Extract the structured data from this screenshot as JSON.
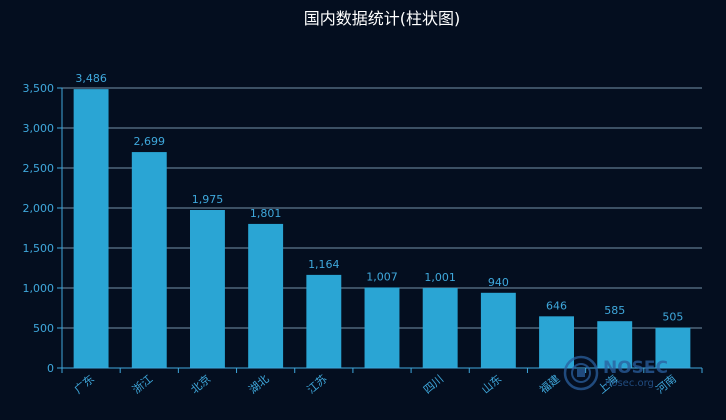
{
  "chart_data": {
    "type": "bar",
    "title": "国内数据统计(柱状图)",
    "categories": [
      "广东",
      "浙江",
      "北京",
      "湖北",
      "江苏",
      "",
      "四川",
      "山东",
      "福建",
      "上海",
      "河南"
    ],
    "values": [
      3486,
      2699,
      1975,
      1801,
      1164,
      1007,
      1001,
      940,
      646,
      585,
      505
    ],
    "data_labels": [
      "3,486",
      "2,699",
      "1,975",
      "1,801",
      "1,164",
      "1,007",
      "1,001",
      "940",
      "646",
      "585",
      "505"
    ],
    "yticks": [
      0,
      500,
      1000,
      1500,
      2000,
      2500,
      3000,
      3500
    ],
    "ytick_labels": [
      "0",
      "500",
      "1,000",
      "1,500",
      "2,000",
      "2,500",
      "3,000",
      "3,500"
    ],
    "ylim": [
      0,
      3500
    ],
    "xlabel": "",
    "ylabel": "",
    "grid": true,
    "legend": "none",
    "colors": {
      "bar": "#2aa5d4",
      "axis": "#3fa8dc",
      "grid": "#8fb4cc",
      "tick_text": "#3fa8dc",
      "title": "#ffffff",
      "background": "#040e1f"
    }
  },
  "watermark": {
    "line1": "NOSEC",
    "line2": "nosec.org"
  }
}
